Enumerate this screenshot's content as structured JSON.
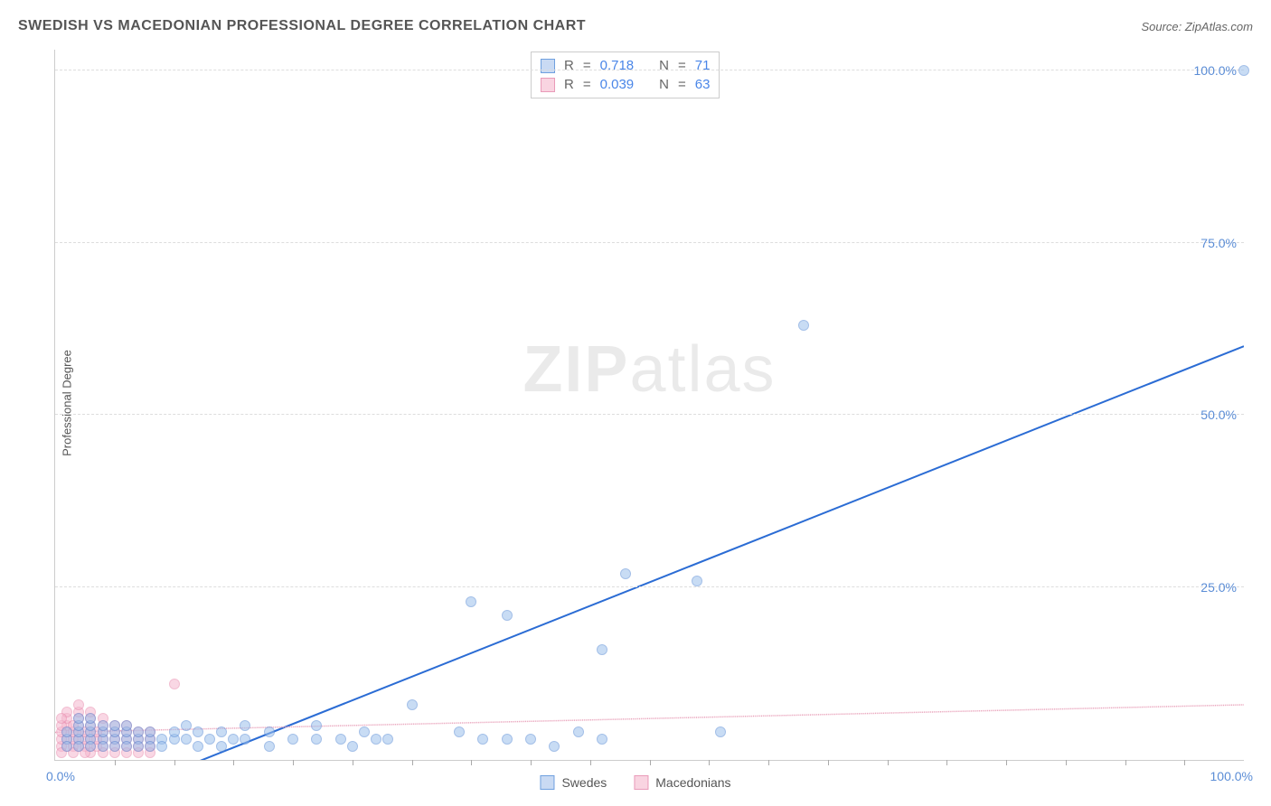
{
  "title": "SWEDISH VS MACEDONIAN PROFESSIONAL DEGREE CORRELATION CHART",
  "source_prefix": "Source: ",
  "source_name": "ZipAtlas.com",
  "ylabel": "Professional Degree",
  "watermark_bold": "ZIP",
  "watermark_rest": "atlas",
  "chart": {
    "type": "scatter",
    "xlim": [
      0,
      100
    ],
    "ylim": [
      0,
      103
    ],
    "ytick_step": 25,
    "y_tick_labels": [
      "25.0%",
      "50.0%",
      "75.0%",
      "100.0%"
    ],
    "x_tick_0": "0.0%",
    "x_tick_100": "100.0%",
    "x_minor_ticks": [
      5,
      10,
      15,
      20,
      25,
      30,
      35,
      40,
      45,
      50,
      55,
      60,
      65,
      70,
      75,
      80,
      85,
      90,
      95
    ],
    "grid_color": "#dddddd",
    "background_color": "#ffffff",
    "marker_radius": 6,
    "marker_opacity": 0.55,
    "series": [
      {
        "name": "Swedes",
        "color_fill": "#9cc0ec",
        "color_stroke": "#5b8dd6",
        "swatch_fill": "#c9daf3",
        "swatch_stroke": "#6fa0df",
        "R": "0.718",
        "N": "71",
        "trend": {
          "x1": 8,
          "y1": -3,
          "x2": 100,
          "y2": 60,
          "stroke": "#2b6cd4",
          "width": 2,
          "dash": "none"
        },
        "points": [
          [
            100,
            100
          ],
          [
            63,
            63
          ],
          [
            48,
            27
          ],
          [
            54,
            26
          ],
          [
            35,
            23
          ],
          [
            38,
            21
          ],
          [
            46,
            16
          ],
          [
            30,
            8
          ],
          [
            34,
            4
          ],
          [
            36,
            3
          ],
          [
            38,
            3
          ],
          [
            40,
            3
          ],
          [
            42,
            2
          ],
          [
            44,
            4
          ],
          [
            46,
            3
          ],
          [
            56,
            4
          ],
          [
            28,
            3
          ],
          [
            26,
            4
          ],
          [
            24,
            3
          ],
          [
            22,
            3
          ],
          [
            22,
            5
          ],
          [
            20,
            3
          ],
          [
            18,
            4
          ],
          [
            18,
            2
          ],
          [
            16,
            3
          ],
          [
            16,
            5
          ],
          [
            15,
            3
          ],
          [
            14,
            4
          ],
          [
            14,
            2
          ],
          [
            13,
            3
          ],
          [
            12,
            4
          ],
          [
            12,
            2
          ],
          [
            11,
            3
          ],
          [
            11,
            5
          ],
          [
            10,
            3
          ],
          [
            10,
            4
          ],
          [
            9,
            3
          ],
          [
            9,
            2
          ],
          [
            8,
            3
          ],
          [
            8,
            4
          ],
          [
            8,
            2
          ],
          [
            7,
            3
          ],
          [
            7,
            4
          ],
          [
            7,
            2
          ],
          [
            6,
            3
          ],
          [
            6,
            4
          ],
          [
            6,
            2
          ],
          [
            6,
            5
          ],
          [
            5,
            3
          ],
          [
            5,
            4
          ],
          [
            5,
            2
          ],
          [
            5,
            5
          ],
          [
            4,
            3
          ],
          [
            4,
            4
          ],
          [
            4,
            2
          ],
          [
            4,
            5
          ],
          [
            3,
            3
          ],
          [
            3,
            4
          ],
          [
            3,
            2
          ],
          [
            3,
            5
          ],
          [
            3,
            6
          ],
          [
            2,
            3
          ],
          [
            2,
            4
          ],
          [
            2,
            2
          ],
          [
            2,
            5
          ],
          [
            2,
            6
          ],
          [
            1,
            3
          ],
          [
            1,
            4
          ],
          [
            1,
            2
          ],
          [
            25,
            2
          ],
          [
            27,
            3
          ]
        ]
      },
      {
        "name": "Macedonians",
        "color_fill": "#f5b7ce",
        "color_stroke": "#e88aad",
        "swatch_fill": "#f9d4e1",
        "swatch_stroke": "#e99bb9",
        "R": "0.039",
        "N": "63",
        "trend": {
          "x1": 0,
          "y1": 4,
          "x2": 100,
          "y2": 8,
          "stroke": "#e9a3bb",
          "width": 1.5,
          "dash": "6,5"
        },
        "points": [
          [
            10,
            11
          ],
          [
            1,
            2
          ],
          [
            1,
            3
          ],
          [
            1,
            4
          ],
          [
            1,
            5
          ],
          [
            1,
            6
          ],
          [
            1,
            7
          ],
          [
            2,
            2
          ],
          [
            2,
            3
          ],
          [
            2,
            4
          ],
          [
            2,
            5
          ],
          [
            2,
            6
          ],
          [
            2,
            7
          ],
          [
            2,
            8
          ],
          [
            3,
            2
          ],
          [
            3,
            3
          ],
          [
            3,
            4
          ],
          [
            3,
            5
          ],
          [
            3,
            6
          ],
          [
            3,
            7
          ],
          [
            3,
            1
          ],
          [
            4,
            2
          ],
          [
            4,
            3
          ],
          [
            4,
            4
          ],
          [
            4,
            5
          ],
          [
            4,
            6
          ],
          [
            4,
            1
          ],
          [
            5,
            2
          ],
          [
            5,
            3
          ],
          [
            5,
            4
          ],
          [
            5,
            5
          ],
          [
            5,
            1
          ],
          [
            6,
            2
          ],
          [
            6,
            3
          ],
          [
            6,
            4
          ],
          [
            6,
            5
          ],
          [
            6,
            1
          ],
          [
            7,
            2
          ],
          [
            7,
            3
          ],
          [
            7,
            4
          ],
          [
            7,
            1
          ],
          [
            8,
            2
          ],
          [
            8,
            3
          ],
          [
            8,
            4
          ],
          [
            8,
            1
          ],
          [
            0.5,
            2
          ],
          [
            0.5,
            3
          ],
          [
            0.5,
            4
          ],
          [
            0.5,
            5
          ],
          [
            0.5,
            6
          ],
          [
            0.5,
            1
          ],
          [
            1.5,
            2
          ],
          [
            1.5,
            3
          ],
          [
            1.5,
            4
          ],
          [
            1.5,
            5
          ],
          [
            1.5,
            1
          ],
          [
            2.5,
            2
          ],
          [
            2.5,
            3
          ],
          [
            2.5,
            4
          ],
          [
            2.5,
            1
          ],
          [
            3.5,
            2
          ],
          [
            3.5,
            3
          ],
          [
            3.5,
            4
          ]
        ]
      }
    ]
  },
  "legend_labels": {
    "series1": "Swedes",
    "series2": "Macedonians"
  },
  "stat_legend": {
    "R_label": "R",
    "N_label": "N",
    "eq": "="
  }
}
